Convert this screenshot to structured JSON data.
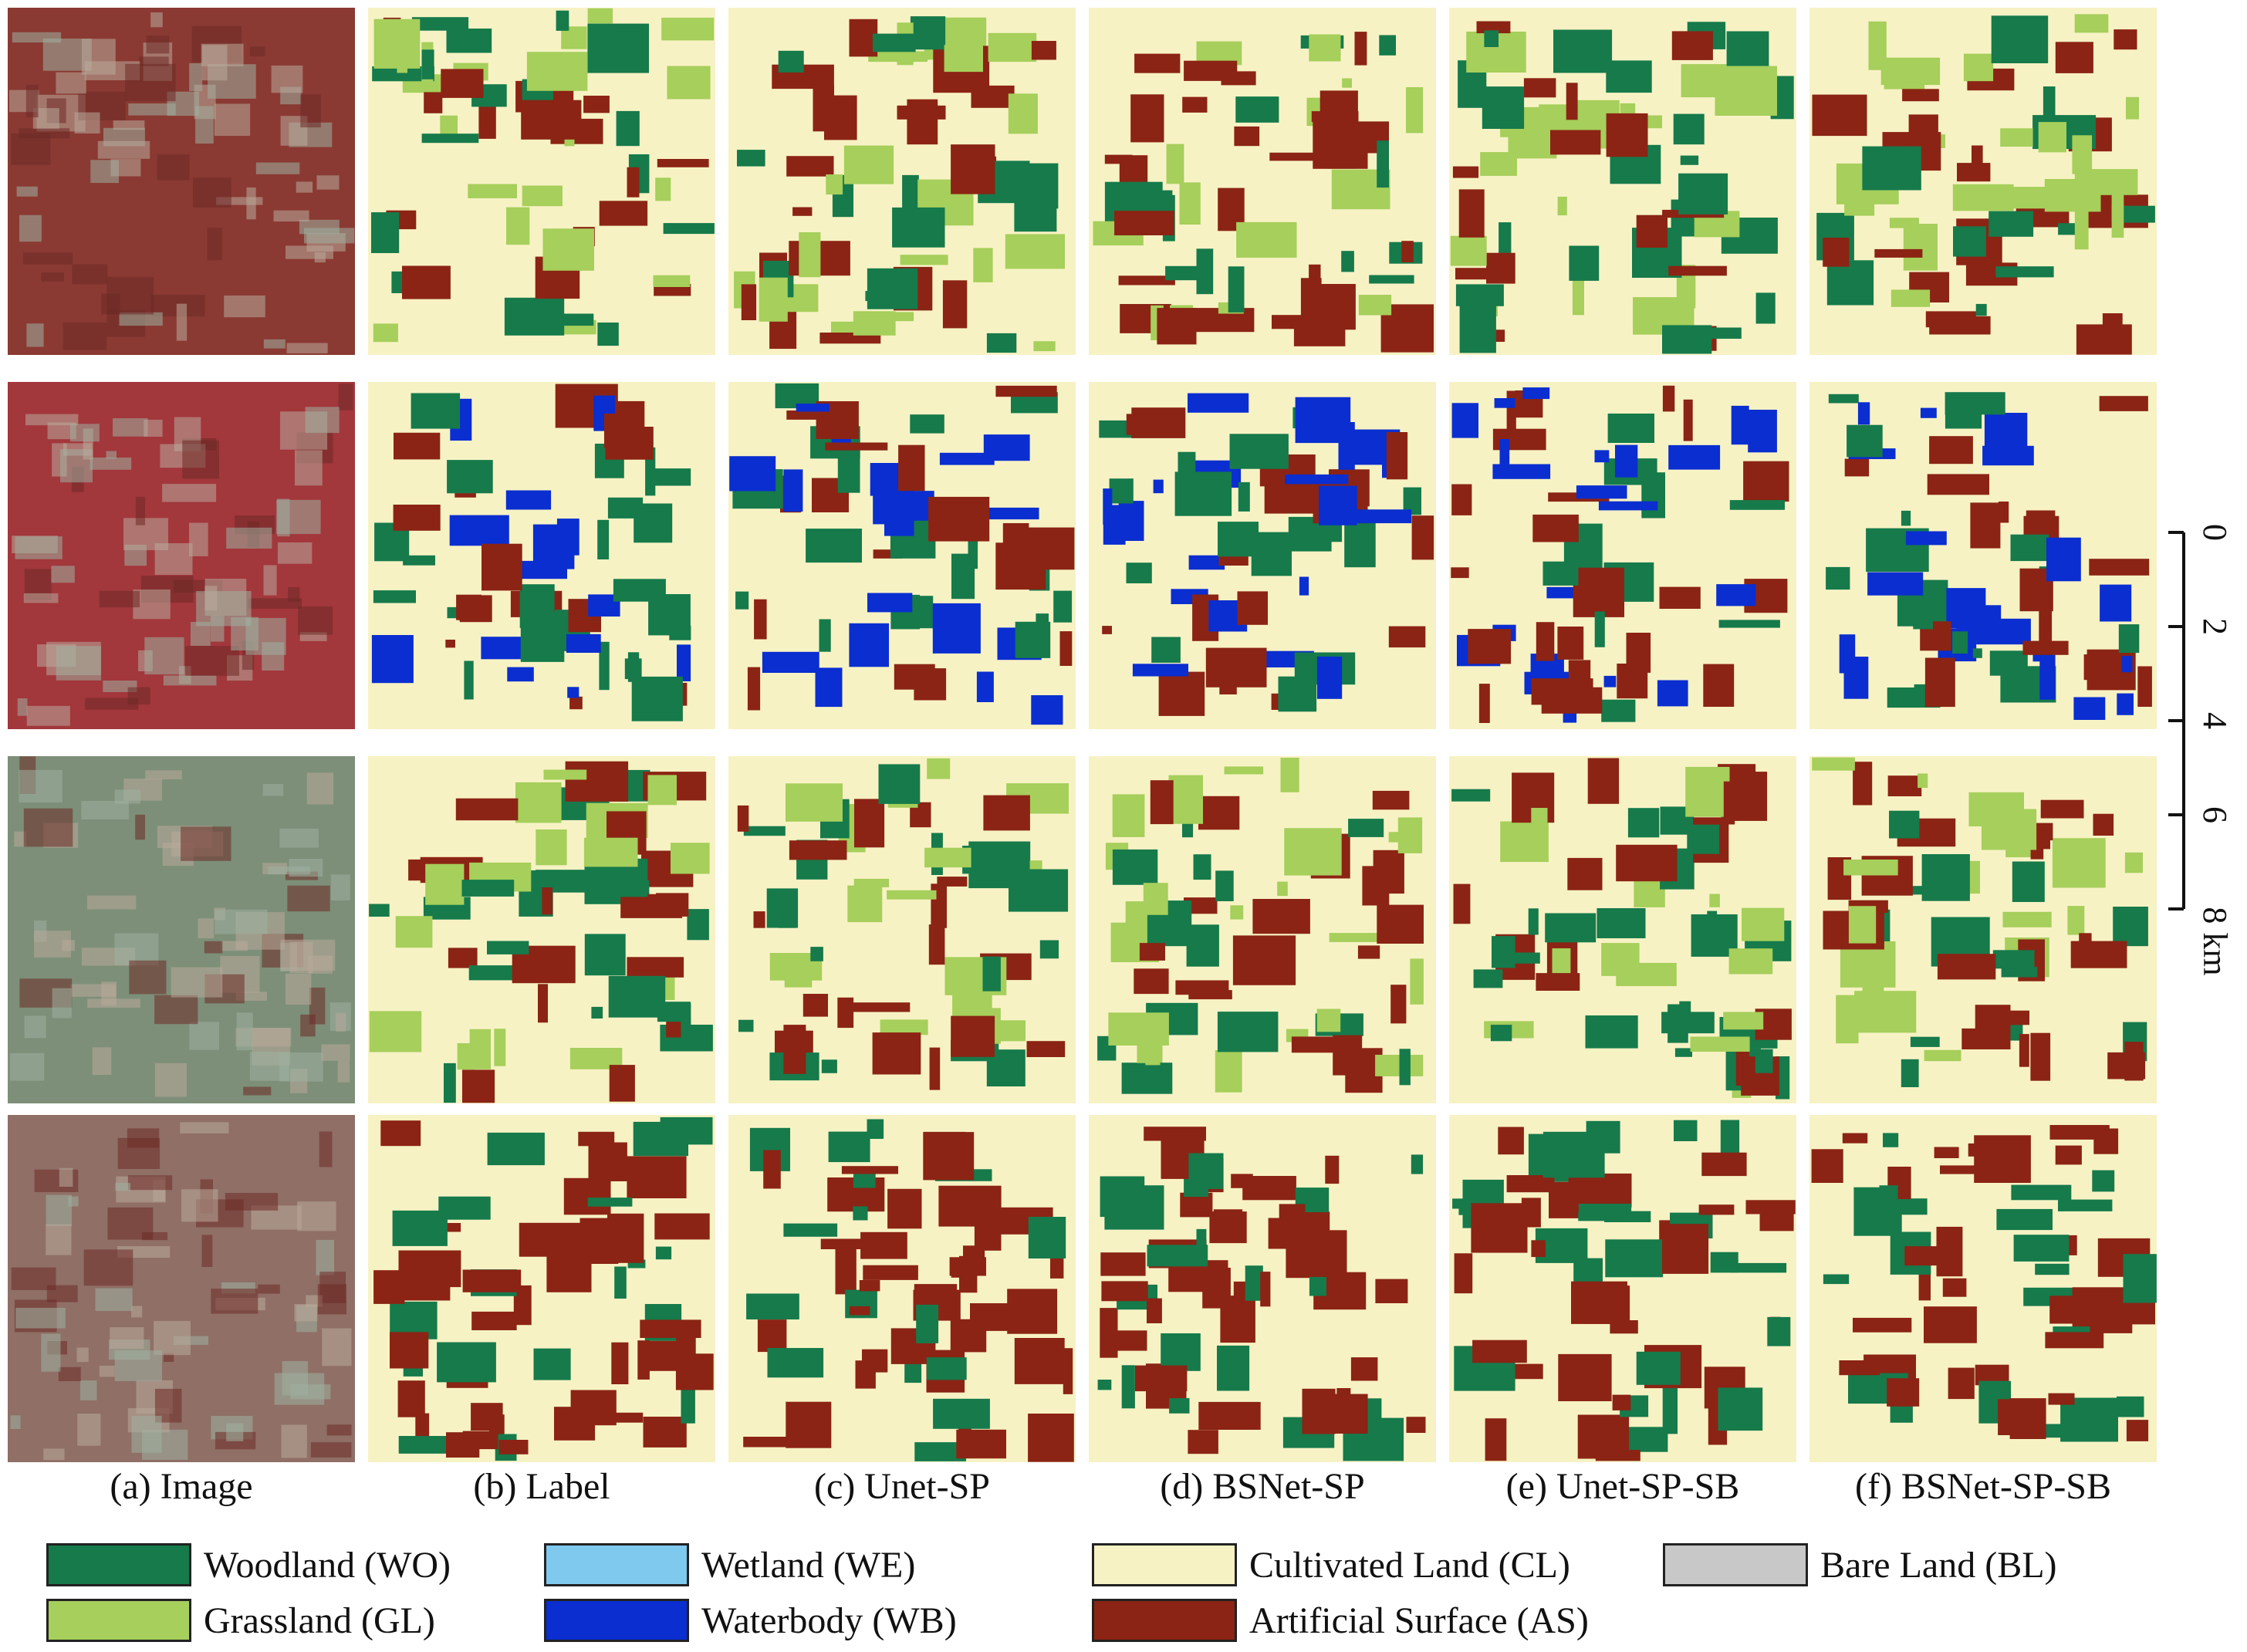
{
  "captions": [
    "(a) Image",
    "(b) Label",
    "(c) Unet-SP",
    "(d) BSNet-SP",
    "(e) Unet-SP-SB",
    "(f) BSNet-SP-SB"
  ],
  "legend": [
    {
      "label": "Woodland (WO)",
      "color": "#167a4b"
    },
    {
      "label": "Wetland (WE)",
      "color": "#7fc9ee"
    },
    {
      "label": "Cultivated Land (CL)",
      "color": "#f7f2c4"
    },
    {
      "label": "Bare Land (BL)",
      "color": "#c8c8c8"
    },
    {
      "label": "Grassland (GL)",
      "color": "#a6cf5b"
    },
    {
      "label": "Waterbody (WB)",
      "color": "#0a2ed0"
    },
    {
      "label": "Artificial Surface (AS)",
      "color": "#8b2414"
    }
  ],
  "scale": {
    "ticks": [
      "0",
      "2",
      "4",
      "6",
      "8 km"
    ]
  },
  "rows": [
    {
      "name": "row-1",
      "image_tone": "#8a3a33",
      "base": "#f7f2c4",
      "blobs": [
        "#a6cf5b",
        "#167a4b",
        "#8b2414"
      ]
    },
    {
      "name": "row-2",
      "image_tone": "#a2373c",
      "base": "#f7f2c4",
      "blobs": [
        "#8b2414",
        "#167a4b",
        "#0a2ed0"
      ]
    },
    {
      "name": "row-3",
      "image_tone": "#7d8f78",
      "base": "#f7f2c4",
      "blobs": [
        "#a6cf5b",
        "#8b2414",
        "#167a4b"
      ]
    },
    {
      "name": "row-4",
      "image_tone": "#8f6f66",
      "base": "#f7f2c4",
      "blobs": [
        "#8b2414",
        "#167a4b",
        "#8b2414"
      ]
    }
  ]
}
